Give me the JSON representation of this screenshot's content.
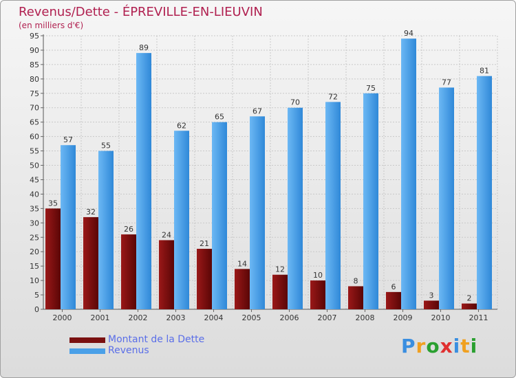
{
  "title": "Revenus/Dette - ÉPREVILLE-EN-LIEUVIN",
  "subtitle": "(en milliers d'€)",
  "logo": {
    "letters": [
      {
        "char": "P",
        "color": "#3a8ee0"
      },
      {
        "char": "r",
        "color": "#f0a020"
      },
      {
        "char": "o",
        "color": "#2aa030"
      },
      {
        "char": "x",
        "color": "#e03030"
      },
      {
        "char": "i",
        "color": "#3a8ee0"
      },
      {
        "char": "t",
        "color": "#f0a020"
      },
      {
        "char": "i",
        "color": "#2aa030"
      }
    ]
  },
  "chart_data": {
    "type": "bar",
    "categories": [
      "2000",
      "2001",
      "2002",
      "2003",
      "2004",
      "2005",
      "2006",
      "2007",
      "2008",
      "2009",
      "2010",
      "2011"
    ],
    "series": [
      {
        "name": "Montant de la Dette",
        "color": "#7a1010",
        "values": [
          35,
          32,
          26,
          24,
          21,
          14,
          12,
          10,
          8,
          6,
          3,
          2
        ]
      },
      {
        "name": "Revenus",
        "color": "#4aa0e8",
        "values": [
          57,
          55,
          89,
          62,
          65,
          67,
          70,
          72,
          75,
          94,
          77,
          81
        ]
      }
    ],
    "ylim": [
      0,
      95
    ],
    "yticks": [
      0,
      5,
      10,
      15,
      20,
      25,
      30,
      35,
      40,
      45,
      50,
      55,
      60,
      65,
      70,
      75,
      80,
      85,
      90,
      95
    ],
    "grid": true,
    "legend_position": "bottom-left"
  }
}
